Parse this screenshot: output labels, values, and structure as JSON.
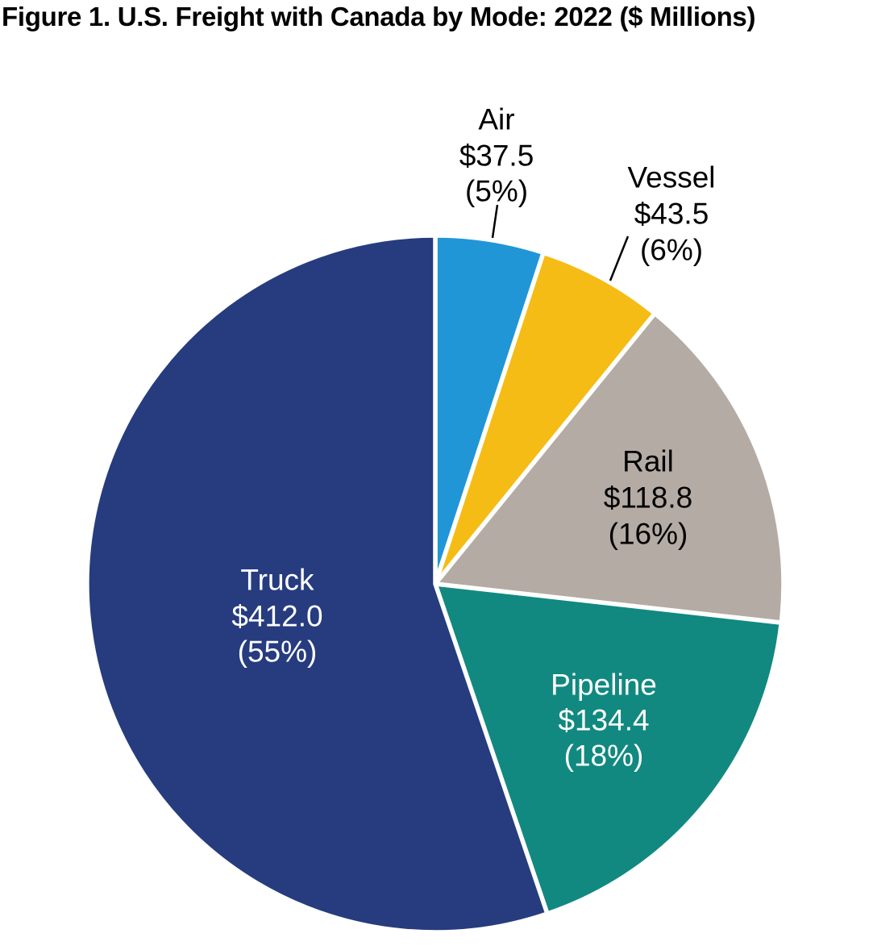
{
  "figure": {
    "title": "Figure 1. U.S. Freight with Canada by Mode: 2022 ($ Millions)"
  },
  "chart_data": {
    "type": "pie",
    "title": "Figure 1. U.S. Freight with Canada by Mode: 2022 ($ Millions)",
    "unit": "$ Millions",
    "direction": "clockwise",
    "start_angle_deg": 0,
    "order_from_top": [
      "Air",
      "Vessel",
      "Rail",
      "Pipeline",
      "Truck"
    ],
    "slices": [
      {
        "label": "Air",
        "value": 37.5,
        "percent": 5,
        "display_value": "$37.5",
        "display_percent": "(5%)",
        "color": "#2196D6",
        "label_color": "#000000",
        "label_position": "outside"
      },
      {
        "label": "Vessel",
        "value": 43.5,
        "percent": 6,
        "display_value": "$43.5",
        "display_percent": "(6%)",
        "color": "#F6BC16",
        "label_color": "#000000",
        "label_position": "outside"
      },
      {
        "label": "Rail",
        "value": 118.8,
        "percent": 16,
        "display_value": "$118.8",
        "display_percent": "(16%)",
        "color": "#B4ABA5",
        "label_color": "#000000",
        "label_position": "inside"
      },
      {
        "label": "Pipeline",
        "value": 134.4,
        "percent": 18,
        "display_value": "$134.4",
        "display_percent": "(18%)",
        "color": "#118980",
        "label_color": "#FFFFFF",
        "label_position": "inside"
      },
      {
        "label": "Truck",
        "value": 412.0,
        "percent": 55,
        "display_value": "$412.0",
        "display_percent": "(55%)",
        "color": "#263C7F",
        "label_color": "#FFFFFF",
        "label_position": "inside"
      }
    ]
  }
}
